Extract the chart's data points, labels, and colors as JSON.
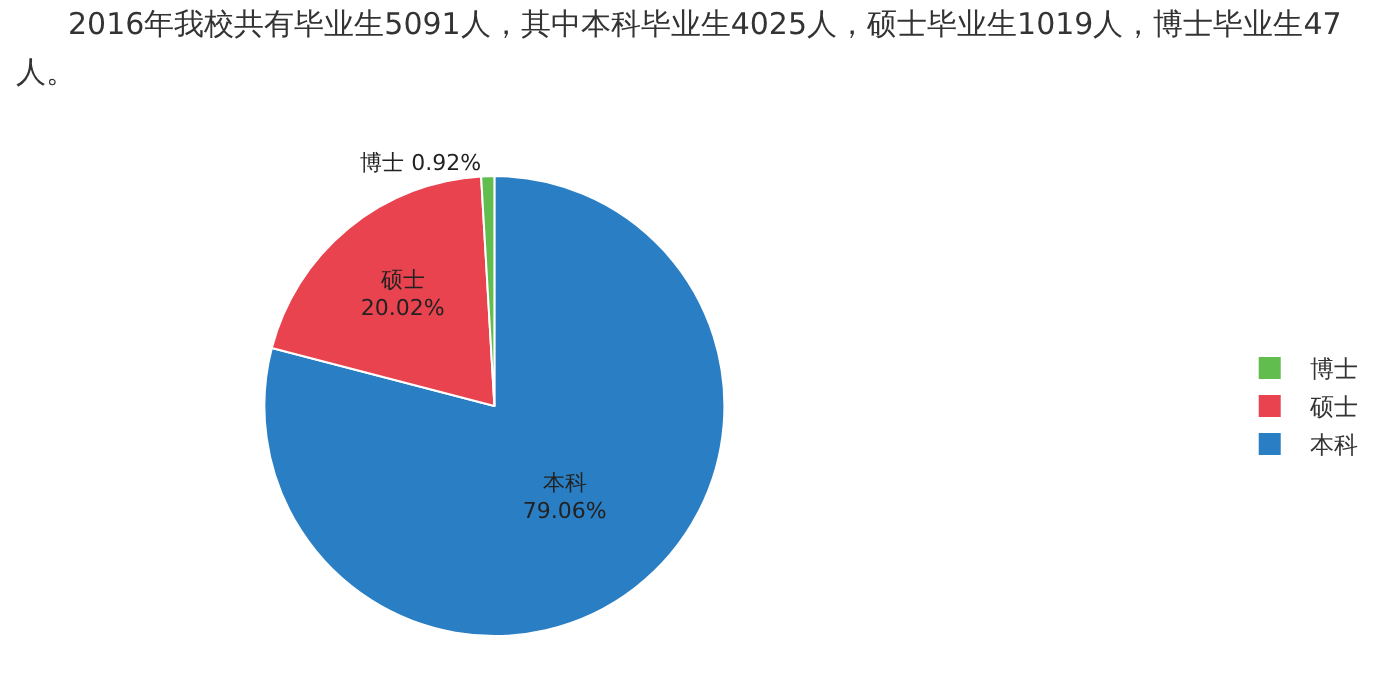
{
  "chart_data": {
    "type": "pie",
    "title": "2016年我校共有毕业生5091人，其中本科毕业生4025人，硕士毕业生1019人，博士毕业生47人。",
    "categories": [
      "本科",
      "硕士",
      "博士"
    ],
    "values": [
      79.06,
      20.02,
      0.92
    ],
    "value_labels": [
      "79.06%",
      "20.02%",
      "0.92%"
    ],
    "colors": [
      "#2a7fc4",
      "#e9434f",
      "#62bd4f"
    ],
    "legend": "right"
  }
}
